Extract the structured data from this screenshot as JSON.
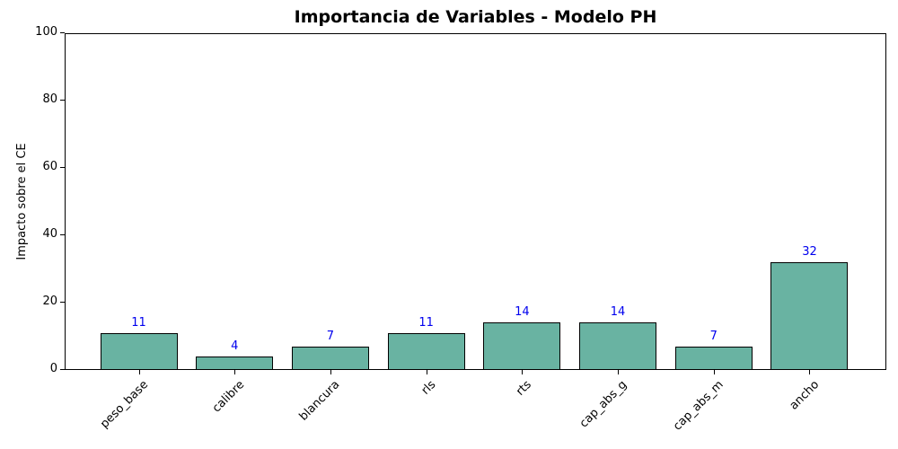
{
  "chart_data": {
    "type": "bar",
    "title": "Importancia de Variables - Modelo PH",
    "ylabel": "Impacto sobre el CE",
    "xlabel": "",
    "categories": [
      "peso_base",
      "calibre",
      "blancura",
      "rls",
      "rts",
      "cap_abs_g",
      "cap_abs_m",
      "ancho"
    ],
    "values": [
      11,
      4,
      7,
      11,
      14,
      14,
      7,
      32
    ],
    "value_labels": [
      "11",
      "4",
      "7",
      "11",
      "14",
      "14",
      "7",
      "32"
    ],
    "ylim": [
      0,
      100
    ],
    "yticks": [
      0,
      20,
      40,
      60,
      80,
      100
    ],
    "grid": false,
    "legend_position": "none",
    "x_tick_rotation_deg": 45,
    "colors": {
      "bar_fill": "#69b3a2",
      "bar_edge": "#000000",
      "value_label": "#0000ee",
      "axis": "#000000",
      "text": "#000000",
      "background": "#ffffff"
    }
  }
}
